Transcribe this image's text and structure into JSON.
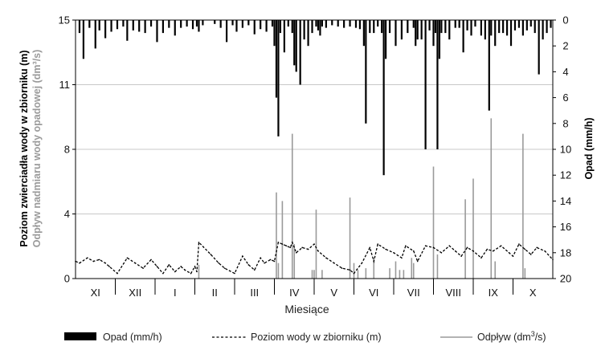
{
  "chart_data": {
    "type": "line",
    "xlabel": "Miesiące",
    "ylabel_left_part1": "Poziom zwierciadła wody w zbiorniku (m)",
    "ylabel_left_part2": "Odpływ nadmiaru wody opadowej (dm³/s)",
    "ylabel_right": "Opad (mm/h)",
    "ylim_left": [
      0,
      15
    ],
    "ylim_right": [
      20,
      0
    ],
    "left_ticks": [
      "0",
      "4",
      "8",
      "11",
      "15"
    ],
    "left_tick_values": [
      0,
      3.75,
      7.5,
      11.25,
      15
    ],
    "right_ticks": [
      "0",
      "2",
      "4",
      "6",
      "8",
      "10",
      "12",
      "14",
      "16",
      "18",
      "20"
    ],
    "right_tick_values": [
      0,
      2,
      4,
      6,
      8,
      10,
      12,
      14,
      16,
      18,
      20
    ],
    "grid": true,
    "legend_placement": "bottom",
    "months": [
      "XI",
      "XII",
      "I",
      "II",
      "III",
      "IV",
      "V",
      "VI",
      "VII",
      "VIII",
      "IX",
      "X"
    ],
    "legend": {
      "opad": "Opad (mm/h)",
      "poziom": "Poziom wody w zbiorniku (m)",
      "odplyw_prefix": "Odpływ (dm",
      "odplyw_sup": "3",
      "odplyw_suffix": "/s)"
    },
    "series": [
      {
        "name": "Opad (mm/h)",
        "axis": "right",
        "style": "bars",
        "color": "#000000",
        "x": [
          0.1,
          0.2,
          0.35,
          0.5,
          0.6,
          0.75,
          0.9,
          1.05,
          1.2,
          1.3,
          1.45,
          1.6,
          1.75,
          1.9,
          2.05,
          2.2,
          2.35,
          2.5,
          2.65,
          2.8,
          2.95,
          3.05,
          3.1,
          3.2,
          3.5,
          3.65,
          3.8,
          3.95,
          4.05,
          4.2,
          4.35,
          4.5,
          4.65,
          4.8,
          4.95,
          5.0,
          5.05,
          5.1,
          5.15,
          5.25,
          5.35,
          5.45,
          5.5,
          5.55,
          5.65,
          5.75,
          5.85,
          5.95,
          6.05,
          6.1,
          6.15,
          6.2,
          6.3,
          6.45,
          6.6,
          6.75,
          6.9,
          7.05,
          7.15,
          7.25,
          7.3,
          7.4,
          7.5,
          7.6,
          7.7,
          7.75,
          7.8,
          7.9,
          8.05,
          8.2,
          8.35,
          8.5,
          8.55,
          8.6,
          8.7,
          8.8,
          8.9,
          9.0,
          9.05,
          9.1,
          9.15,
          9.2,
          9.3,
          9.4,
          9.55,
          9.65,
          9.75,
          9.85,
          9.95,
          10.05,
          10.2,
          10.3,
          10.4,
          10.45,
          10.55,
          10.65,
          10.75,
          10.85,
          10.95,
          11.05,
          11.15,
          11.25,
          11.35,
          11.45,
          11.55,
          11.65,
          11.75,
          11.85,
          11.95
        ],
        "values": [
          1.0,
          3.0,
          0.6,
          2.2,
          0.8,
          1.4,
          0.9,
          0.7,
          0.5,
          1.6,
          0.8,
          0.9,
          1.0,
          0.5,
          1.7,
          1.0,
          0.6,
          1.2,
          0.6,
          0.5,
          0.7,
          0.5,
          0.9,
          0.4,
          0.3,
          0.6,
          1.7,
          0.4,
          0.9,
          0.6,
          0.4,
          1.1,
          0.7,
          0.9,
          0.5,
          2.0,
          6.0,
          9.0,
          1.0,
          2.5,
          0.5,
          1.0,
          3.5,
          4.0,
          5.0,
          1.5,
          2.0,
          1.0,
          0.5,
          0.8,
          1.2,
          0.5,
          0.6,
          0.4,
          0.5,
          0.6,
          0.5,
          0.6,
          0.7,
          2.0,
          8.0,
          1.0,
          1.0,
          0.5,
          1.0,
          12.0,
          3.0,
          1.0,
          2.0,
          1.5,
          1.0,
          0.6,
          2.0,
          1.5,
          1.5,
          10.0,
          0.8,
          2.0,
          1.0,
          10.0,
          3.0,
          1.0,
          1.0,
          1.5,
          0.6,
          0.6,
          2.5,
          0.8,
          1.2,
          0.5,
          1.2,
          1.5,
          7.0,
          1.2,
          2.0,
          1.0,
          1.0,
          1.2,
          2.0,
          0.8,
          0.6,
          1.2,
          0.8,
          0.5,
          1.0,
          4.2,
          1.5,
          1.0,
          0.6
        ]
      },
      {
        "name": "Poziom wody w zbiorniku (m)",
        "axis": "left",
        "style": "dashed-line",
        "color": "#000000",
        "x": [
          0.0,
          0.1,
          0.3,
          0.45,
          0.6,
          0.75,
          0.85,
          1.05,
          1.3,
          1.5,
          1.7,
          1.9,
          2.05,
          2.2,
          2.35,
          2.5,
          2.65,
          2.75,
          2.9,
          3.0,
          3.05,
          3.1,
          3.4,
          3.6,
          3.75,
          4.0,
          4.2,
          4.35,
          4.5,
          4.65,
          4.75,
          4.9,
          5.0,
          5.1,
          5.2,
          5.3,
          5.4,
          5.45,
          5.55,
          5.7,
          5.85,
          6.0,
          6.1,
          6.3,
          6.5,
          6.7,
          6.9,
          7.0,
          7.2,
          7.4,
          7.5,
          7.6,
          7.8,
          8.0,
          8.2,
          8.3,
          8.5,
          8.6,
          8.8,
          9.0,
          9.2,
          9.4,
          9.55,
          9.7,
          9.85,
          10.0,
          10.2,
          10.35,
          10.5,
          10.7,
          10.9,
          11.0,
          11.15,
          11.3,
          11.45,
          11.6,
          11.8,
          12.0
        ],
        "values": [
          1.0,
          0.9,
          1.2,
          1.0,
          1.1,
          0.9,
          0.7,
          0.3,
          1.2,
          0.9,
          0.6,
          1.1,
          0.7,
          0.3,
          0.8,
          0.4,
          0.7,
          0.5,
          0.3,
          0.7,
          0.4,
          2.1,
          1.4,
          0.9,
          0.6,
          0.3,
          1.3,
          0.8,
          0.5,
          1.2,
          0.9,
          1.1,
          1.0,
          2.1,
          2.0,
          1.9,
          1.8,
          2.1,
          1.5,
          1.8,
          1.7,
          2.0,
          1.6,
          1.2,
          0.9,
          0.6,
          0.5,
          0.3,
          0.9,
          1.8,
          1.0,
          2.0,
          1.7,
          1.5,
          1.2,
          1.9,
          1.6,
          1.0,
          1.9,
          1.8,
          1.5,
          1.9,
          1.6,
          1.3,
          1.8,
          1.6,
          1.2,
          1.7,
          1.6,
          1.9,
          1.5,
          1.3,
          2.0,
          1.7,
          1.4,
          1.8,
          1.6,
          1.1
        ]
      },
      {
        "name": "Odpływ (dm³/s)",
        "axis": "left",
        "style": "spikes",
        "color": "#9a9a9a",
        "x": [
          3.1,
          5.05,
          5.1,
          5.2,
          5.45,
          5.5,
          5.95,
          6.0,
          6.05,
          6.2,
          6.9,
          7.0,
          7.1,
          7.3,
          7.5,
          7.9,
          8.05,
          8.15,
          8.25,
          8.45,
          8.5,
          9.0,
          9.1,
          9.8,
          10.0,
          10.45,
          10.55,
          11.25,
          11.3
        ],
        "values": [
          0.8,
          5.0,
          0.9,
          4.5,
          8.4,
          2.0,
          0.5,
          0.5,
          4.0,
          0.5,
          4.7,
          0.9,
          0.5,
          0.6,
          1.2,
          0.6,
          1.0,
          0.5,
          0.5,
          1.2,
          0.9,
          6.5,
          1.4,
          4.6,
          5.8,
          9.3,
          1.0,
          8.4,
          0.6
        ]
      }
    ]
  }
}
